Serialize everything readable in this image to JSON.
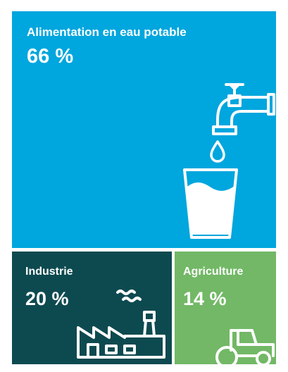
{
  "chart_data": {
    "type": "treemap",
    "unit": "%",
    "items": [
      {
        "label": "Alimentation en eau potable",
        "value": 66,
        "value_text": "66 %",
        "color": "#00a6de",
        "icon": "water-tap-glass-icon"
      },
      {
        "label": "Industrie",
        "value": 20,
        "value_text": "20 %",
        "color": "#0d4a50",
        "icon": "factory-icon"
      },
      {
        "label": "Agriculture",
        "value": 14,
        "value_text": "14 %",
        "color": "#72b866",
        "icon": "tractor-icon"
      }
    ]
  }
}
